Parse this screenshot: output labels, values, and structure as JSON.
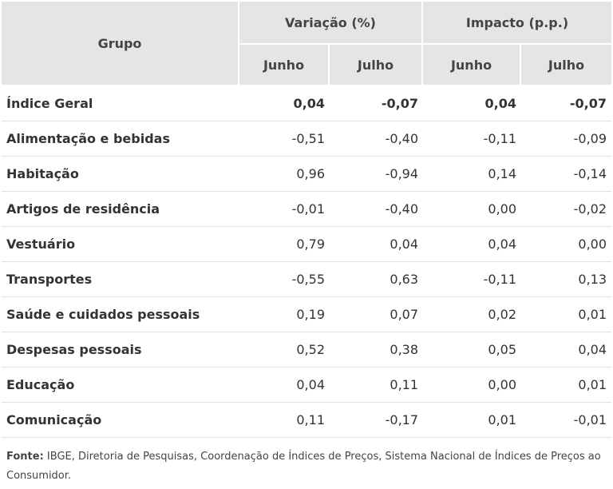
{
  "table": {
    "header": {
      "group": "Grupo",
      "variation": "Variação (%)",
      "impact": "Impacto (p.p.)",
      "months": [
        "Junho",
        "Julho",
        "Junho",
        "Julho"
      ]
    },
    "rows": [
      {
        "label": "Índice Geral",
        "values": [
          "0,04",
          "-0,07",
          "0,04",
          "-0,07"
        ],
        "bold": true
      },
      {
        "label": "Alimentação e bebidas",
        "values": [
          "-0,51",
          "-0,40",
          "-0,11",
          "-0,09"
        ]
      },
      {
        "label": "Habitação",
        "values": [
          "0,96",
          "-0,94",
          "0,14",
          "-0,14"
        ]
      },
      {
        "label": "Artigos de residência",
        "values": [
          "-0,01",
          "-0,40",
          "0,00",
          "-0,02"
        ]
      },
      {
        "label": "Vestuário",
        "values": [
          "0,79",
          "0,04",
          "0,04",
          "0,00"
        ]
      },
      {
        "label": "Transportes",
        "values": [
          "-0,55",
          "0,63",
          "-0,11",
          "0,13"
        ]
      },
      {
        "label": "Saúde e cuidados pessoais",
        "values": [
          "0,19",
          "0,07",
          "0,02",
          "0,01"
        ]
      },
      {
        "label": "Despesas pessoais",
        "values": [
          "0,52",
          "0,38",
          "0,05",
          "0,04"
        ]
      },
      {
        "label": "Educação",
        "values": [
          "0,04",
          "0,11",
          "0,00",
          "0,01"
        ]
      },
      {
        "label": "Comunicação",
        "values": [
          "0,11",
          "-0,17",
          "0,01",
          "-0,01"
        ]
      }
    ]
  },
  "source": {
    "label": "Fonte:",
    "text": " IBGE, Diretoria de Pesquisas, Coordenação de Índices de Preços, Sistema Nacional de Índices de Preços ao Consumidor."
  }
}
